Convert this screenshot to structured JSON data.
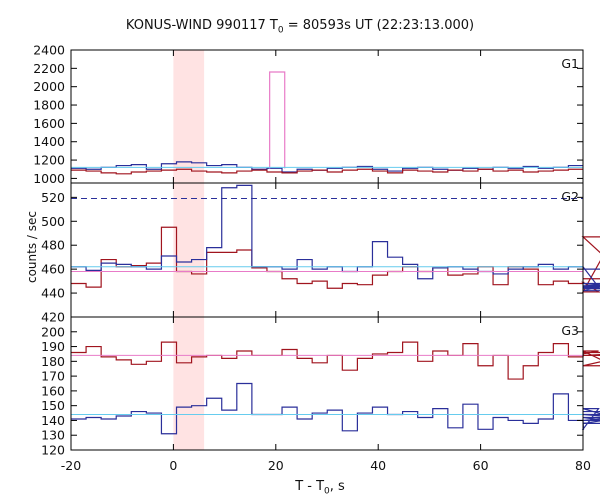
{
  "title": {
    "prefix": "KONUS-WIND 990117 T",
    "sub": "0",
    "suffix": " = 80593s UT (22:23:13.000)"
  },
  "xlabel": {
    "prefix": "T - T",
    "sub": "0",
    "suffix": ", s"
  },
  "ylabel": "counts / sec",
  "colors": {
    "red": "#a0141e",
    "blue": "#2a2f9a",
    "cyan": "#66ccee",
    "pink": "#e87bc8",
    "band": "#ffe3e3",
    "dashed": "#2a2f9a"
  },
  "chart_data": {
    "type": "line",
    "xlim": [
      -20,
      80
    ],
    "x_ticks": [
      -20,
      0,
      20,
      40,
      60,
      80
    ],
    "highlight_band": [
      0,
      6
    ],
    "panels": [
      {
        "label": "G1",
        "ylim": [
          950,
          2400
        ],
        "y_ticks": [
          1000,
          1200,
          1400,
          1600,
          1800,
          2000,
          2200,
          2400
        ],
        "series": [
          {
            "color": "blue",
            "step": true,
            "x0": -20,
            "dx": 2.944,
            "values": [
              1110,
              1100,
              1120,
              1140,
              1150,
              1100,
              1160,
              1180,
              1170,
              1140,
              1150,
              1120,
              1100,
              1110,
              1070,
              1100,
              1090,
              1110,
              1120,
              1130,
              1100,
              1080,
              1110,
              1120,
              1100,
              1090,
              1110,
              1100,
              1120,
              1110,
              1130,
              1110,
              1120,
              1140
            ]
          },
          {
            "color": "red",
            "step": true,
            "x0": -20,
            "dx": 2.944,
            "values": [
              1090,
              1080,
              1060,
              1050,
              1070,
              1080,
              1090,
              1100,
              1080,
              1070,
              1060,
              1080,
              1090,
              1070,
              1060,
              1080,
              1090,
              1070,
              1090,
              1100,
              1080,
              1060,
              1090,
              1080,
              1070,
              1090,
              1080,
              1100,
              1080,
              1090,
              1070,
              1080,
              1090,
              1100
            ]
          },
          {
            "color": "pink",
            "step": true,
            "x0": 18.8,
            "dx": 2.944,
            "values": [
              2160
            ]
          },
          {
            "color": "cyan",
            "level": 1120
          }
        ]
      },
      {
        "label": "G2",
        "ylim": [
          420,
          532
        ],
        "y_ticks": [
          420,
          440,
          460,
          480,
          500,
          520
        ],
        "series": [
          {
            "color": "red",
            "step": true,
            "x0": -20,
            "dx": 2.944,
            "values": [
              448,
              445,
              468,
              462,
              463,
              465,
              495,
              458,
              456,
              474,
              474,
              476,
              461,
              458,
              452,
              448,
              450,
              444,
              448,
              447,
              455,
              458,
              462,
              458,
              461,
              455,
              456,
              462,
              447,
              462,
              460,
              447,
              450,
              448,
              449,
              441,
              487,
              452
            ]
          },
          {
            "color": "blue",
            "step": true,
            "x0": -20,
            "dx": 2.944,
            "values": [
              462,
              459,
              465,
              464,
              462,
              460,
              471,
              466,
              468,
              478,
              528,
              530,
              462,
              462,
              460,
              468,
              460,
              462,
              458,
              462,
              483,
              470,
              464,
              452,
              461,
              462,
              460,
              458,
              456,
              460,
              462,
              464,
              460,
              462,
              462,
              445,
              446,
              448,
              444,
              442,
              460
            ]
          },
          {
            "color": "cyan",
            "level": 462
          },
          {
            "color": "pink",
            "level": 458
          },
          {
            "color": "blue",
            "dashed": true,
            "level": 519
          }
        ]
      },
      {
        "label": "G3",
        "ylim": [
          120,
          210
        ],
        "y_ticks": [
          120,
          130,
          140,
          150,
          160,
          170,
          180,
          190,
          200
        ],
        "series": [
          {
            "color": "red",
            "step": true,
            "x0": -20,
            "dx": 2.944,
            "values": [
              186,
              190,
              183,
              181,
              178,
              180,
              193,
              179,
              183,
              184,
              182,
              187,
              184,
              184,
              188,
              182,
              179,
              184,
              174,
              182,
              185,
              186,
              193,
              180,
              187,
              184,
              192,
              177,
              184,
              168,
              177,
              186,
              192,
              183,
              185,
              187,
              177,
              184,
              186
            ]
          },
          {
            "color": "blue",
            "step": true,
            "x0": -20,
            "dx": 2.944,
            "values": [
              141,
              142,
              141,
              143,
              146,
              145,
              131,
              149,
              150,
              155,
              147,
              165,
              144,
              144,
              149,
              141,
              145,
              147,
              133,
              145,
              149,
              144,
              146,
              142,
              148,
              135,
              151,
              134,
              142,
              140,
              138,
              141,
              158,
              140,
              134,
              148,
              142,
              138,
              144,
              140,
              146
            ]
          },
          {
            "color": "cyan",
            "level": 144
          },
          {
            "color": "pink",
            "level": 184
          }
        ]
      }
    ]
  }
}
